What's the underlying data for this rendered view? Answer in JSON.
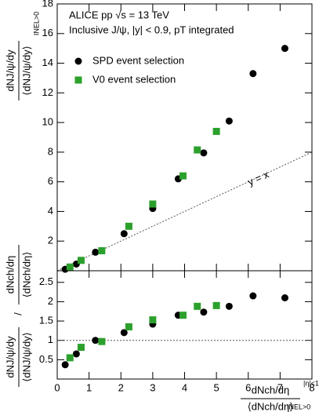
{
  "chart_data": [
    {
      "type": "scatter",
      "annotations": [
        "ALICE pp √s = 13 TeV",
        "Inclusive J/ψ, |y| < 0.9, pT integrated"
      ],
      "ylabel": {
        "num": "dNJ/ψ/dy",
        "den": "⟨dNJ/ψ/dy⟩",
        "sub": "INEL>0"
      },
      "line_label": "y = x",
      "xlim": [
        0,
        8
      ],
      "ylim": [
        0,
        18
      ],
      "yticks": [
        2,
        4,
        6,
        8,
        10,
        12,
        14,
        16,
        18
      ],
      "reference": "identity",
      "series": [
        {
          "name": "SPD event selection",
          "color": "#000000",
          "marker": "circle",
          "x": [
            0.25,
            0.6,
            1.2,
            2.1,
            3.0,
            3.8,
            4.6,
            5.4,
            6.15,
            7.15
          ],
          "values": [
            0.1,
            0.45,
            1.25,
            2.5,
            4.2,
            6.2,
            7.95,
            10.1,
            13.3,
            15.0
          ]
        },
        {
          "name": "V0 event selection",
          "color": "#2ca02c",
          "marker": "square",
          "x": [
            0.4,
            0.75,
            1.4,
            2.25,
            3.0,
            3.95,
            4.4,
            5.0
          ],
          "values": [
            0.25,
            0.7,
            1.35,
            3.0,
            4.5,
            6.4,
            8.15,
            9.4
          ]
        }
      ]
    },
    {
      "type": "scatter",
      "ylabel": {
        "num": "dNJ/ψ/dy",
        "den": "⟨dNJ/ψ/dy⟩",
        "num2": "dNch/dη",
        "den2": "⟨dNch/dη⟩",
        "sep": "/"
      },
      "xlabel": {
        "num": "dNch/dη",
        "den": "⟨dNch/dη⟩",
        "sup": "|η|<1",
        "sub": "INEL>0"
      },
      "xlim": [
        0,
        8
      ],
      "xticks": [
        0,
        1,
        2,
        3,
        4,
        5,
        6,
        7,
        8
      ],
      "ylim": [
        0,
        2.8
      ],
      "yticks": [
        0.5,
        1,
        1.5,
        2,
        2.5
      ],
      "reference": 1,
      "series": [
        {
          "name": "SPD event selection",
          "color": "#000000",
          "marker": "circle",
          "x": [
            0.25,
            0.6,
            1.2,
            2.1,
            3.0,
            3.8,
            4.6,
            5.4,
            6.15,
            7.15
          ],
          "values": [
            0.37,
            0.65,
            1.0,
            1.2,
            1.42,
            1.65,
            1.73,
            1.88,
            2.15,
            2.1
          ]
        },
        {
          "name": "V0 event selection",
          "color": "#2ca02c",
          "marker": "square",
          "x": [
            0.4,
            0.75,
            1.4,
            2.25,
            3.0,
            3.95,
            4.4,
            5.0
          ],
          "values": [
            0.55,
            0.82,
            0.97,
            1.35,
            1.53,
            1.65,
            1.88,
            1.9
          ]
        }
      ]
    }
  ]
}
